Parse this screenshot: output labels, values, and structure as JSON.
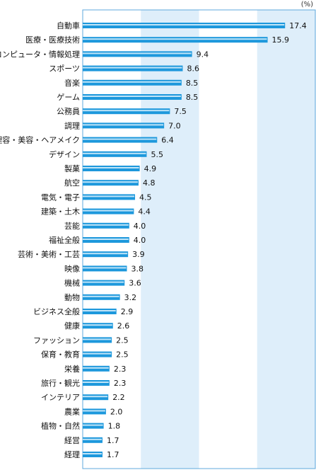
{
  "chart_data": {
    "type": "bar",
    "orientation": "horizontal",
    "unit_label": "(%)",
    "categories": [
      "自動車",
      "医療・医療技術",
      "コンピュータ・情報処理",
      "スポーツ",
      "音楽",
      "ゲーム",
      "公務員",
      "調理",
      "理容・美容・ヘアメイク",
      "デザイン",
      "製菓",
      "航空",
      "電気・電子",
      "建築・土木",
      "芸能",
      "福祉全般",
      "芸術・美術・工芸",
      "映像",
      "機械",
      "動物",
      "ビジネス全般",
      "健康",
      "ファッション",
      "保育・教育",
      "栄養",
      "旅行・観光",
      "インテリア",
      "農業",
      "植物・自然",
      "経営",
      "経理"
    ],
    "values": [
      17.4,
      15.9,
      9.4,
      8.6,
      8.5,
      8.5,
      7.5,
      7.0,
      6.4,
      5.5,
      4.9,
      4.8,
      4.5,
      4.4,
      4.0,
      4.0,
      3.9,
      3.8,
      3.6,
      3.2,
      2.9,
      2.6,
      2.5,
      2.5,
      2.3,
      2.3,
      2.2,
      2.0,
      1.8,
      1.7,
      1.7
    ],
    "value_labels": [
      "17.4",
      "15.9",
      "9.4",
      "8.6",
      "8.5",
      "8.5",
      "7.5",
      "7.0",
      "6.4",
      "5.5",
      "4.9",
      "4.8",
      "4.5",
      "4.4",
      "4.0",
      "4.0",
      "3.9",
      "3.8",
      "3.6",
      "3.2",
      "2.9",
      "2.6",
      "2.5",
      "2.5",
      "2.3",
      "2.3",
      "2.2",
      "2.0",
      "1.8",
      "1.7",
      "1.7"
    ],
    "xlim": [
      0,
      20
    ],
    "band_step": 5,
    "grid": false,
    "colors": {
      "band_light": "#deeefa",
      "band_white": "#ffffff",
      "frame": "#5fa8dc",
      "bar_main": "#1d98dc",
      "bar_highlight": "#bfe4f8",
      "text": "#111111"
    }
  }
}
